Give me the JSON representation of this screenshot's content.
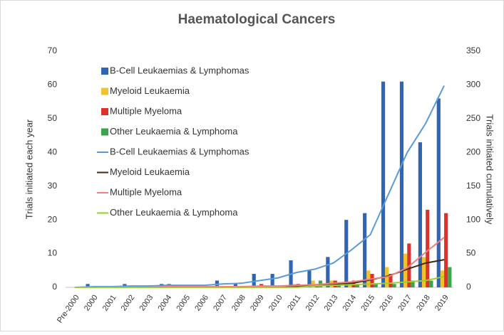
{
  "chart_data": {
    "type": "bar",
    "title": "Haematological Cancers",
    "ylabel": "Trials initiated each year",
    "y2label": "Trials initiated cumulatively",
    "categories": [
      "Pre-2000",
      "2000",
      "2001",
      "2002",
      "2003",
      "2004",
      "2005",
      "2006",
      "2007",
      "2008",
      "2009",
      "2010",
      "2011",
      "2012",
      "2013",
      "2014",
      "2015",
      "2016",
      "2017",
      "2018",
      "2019"
    ],
    "series": [
      {
        "name": "B-Cell Leukaemias & Lymphomas",
        "type": "bar",
        "color": "#2e66b5",
        "values": [
          0,
          1,
          0,
          1,
          0,
          1,
          0,
          0,
          2,
          1,
          4,
          4,
          8,
          5,
          9,
          20,
          22,
          61,
          61,
          43,
          56
        ]
      },
      {
        "name": "Myeloid Leukaemia",
        "type": "bar",
        "color": "#f2c12e",
        "values": [
          0,
          0,
          0,
          0,
          0,
          0,
          0,
          0,
          0,
          0,
          0,
          0,
          1,
          2,
          2,
          1,
          5,
          6,
          10,
          9,
          5
        ]
      },
      {
        "name": "Multiple Myeloma",
        "type": "bar",
        "color": "#e0302a",
        "values": [
          0,
          0,
          0,
          0,
          0,
          1,
          0,
          0,
          0,
          0,
          1,
          0,
          1,
          1,
          2,
          2,
          4,
          4,
          13,
          23,
          22
        ]
      },
      {
        "name": "Other Leukaemia & Lymphoma",
        "type": "bar",
        "color": "#3aa64a",
        "values": [
          0,
          0,
          0,
          0,
          0,
          0,
          0,
          0,
          0,
          0,
          0,
          0,
          0,
          2,
          1,
          1,
          1,
          1,
          2,
          2,
          6
        ]
      },
      {
        "name": "B-Cell Leukaemias & Lymphomas",
        "type": "line",
        "axis": "y2",
        "color": "#5b9bd5",
        "values": [
          0,
          1,
          1,
          2,
          2,
          3,
          3,
          3,
          5,
          6,
          10,
          14,
          22,
          27,
          36,
          56,
          78,
          139,
          200,
          243,
          299
        ]
      },
      {
        "name": "Myeloid Leukaemia",
        "type": "line",
        "axis": "y2",
        "color": "#3d2a10",
        "values": [
          0,
          0,
          0,
          0,
          0,
          0,
          0,
          0,
          0,
          0,
          0,
          0,
          1,
          3,
          5,
          6,
          11,
          17,
          27,
          36,
          41
        ]
      },
      {
        "name": "Multiple Myeloma",
        "type": "line",
        "axis": "y2",
        "color": "#f08080",
        "values": [
          0,
          0,
          0,
          0,
          0,
          1,
          1,
          1,
          1,
          1,
          2,
          2,
          3,
          4,
          6,
          8,
          12,
          16,
          29,
          52,
          74
        ]
      },
      {
        "name": "Other Leukaemia & Lymphoma",
        "type": "line",
        "axis": "y2",
        "color": "#9acd32",
        "values": [
          0,
          0,
          0,
          0,
          0,
          0,
          0,
          0,
          0,
          0,
          0,
          0,
          0,
          2,
          3,
          4,
          5,
          6,
          8,
          10,
          16
        ]
      }
    ],
    "ylim": [
      0,
      70
    ],
    "yticks": [
      0,
      10,
      20,
      30,
      40,
      50,
      60,
      70
    ],
    "y2lim": [
      0,
      350
    ],
    "y2ticks": [
      0,
      50,
      100,
      150,
      200,
      250,
      300,
      350
    ],
    "legend": "upper left"
  }
}
